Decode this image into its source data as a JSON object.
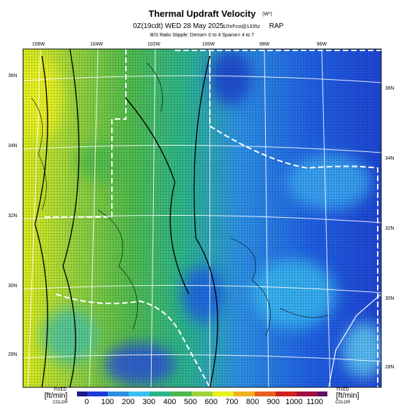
{
  "header": {
    "title": "Thermal Updraft Velocity",
    "title_unit": "(W*)",
    "line2": "0Z(19cdt) WED 28 May 2025",
    "forecast": "12hrFcst@1335z",
    "model": "RAP",
    "line3": "B/S Ratio Stipple: Dense= 0 to 4 Sparse= 4 to 7"
  },
  "map": {
    "longitudes": [
      "106W",
      "104W",
      "102W",
      "100W",
      "98W",
      "96W"
    ],
    "latitudes_left": [
      "36N",
      "34N",
      "32N",
      "30N",
      "28N"
    ],
    "latitudes_right": [
      "36N",
      "34N",
      "32N",
      "30N",
      "28N"
    ]
  },
  "colorbar": {
    "left": {
      "top": "FIXED",
      "unit": "[ft/min]",
      "bottom": "COLOR"
    },
    "right": {
      "top": "FIXED",
      "unit": "[ft/min]",
      "bottom": "COLOR"
    },
    "ticks": [
      0,
      100,
      200,
      300,
      400,
      500,
      600,
      700,
      800,
      900,
      1000,
      1100
    ]
  }
}
